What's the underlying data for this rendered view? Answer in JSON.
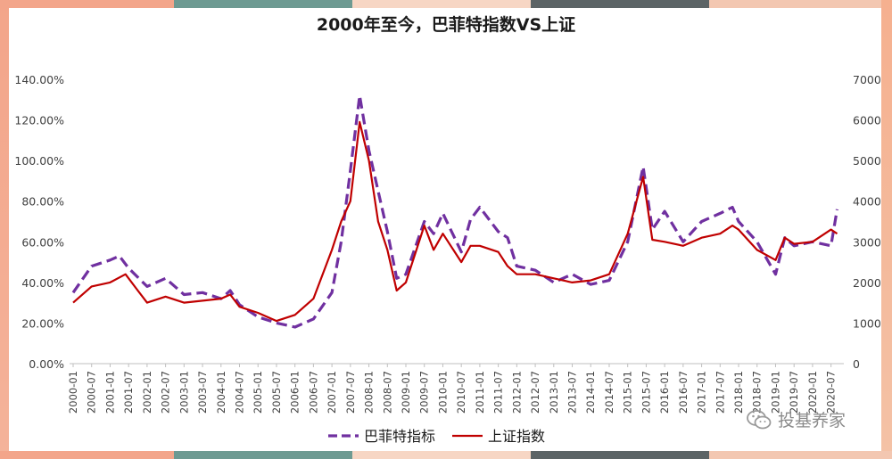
{
  "chart_data": {
    "type": "line",
    "title": "2000年至今，巴菲特指数VS上证",
    "x_tick_labels": [
      "2000-01",
      "2000-07",
      "2001-01",
      "2001-07",
      "2002-01",
      "2002-07",
      "2003-01",
      "2003-07",
      "2004-01",
      "2004-07",
      "2005-01",
      "2005-07",
      "2006-01",
      "2006-07",
      "2007-01",
      "2007-07",
      "2008-01",
      "2008-07",
      "2009-01",
      "2009-07",
      "2010-01",
      "2010-07",
      "2011-01",
      "2011-07",
      "2012-01",
      "2012-07",
      "2013-01",
      "2013-07",
      "2014-01",
      "2014-07",
      "2015-01",
      "2015-07",
      "2016-01",
      "2016-07",
      "2017-01",
      "2017-07",
      "2018-01",
      "2018-07",
      "2019-01",
      "2019-07",
      "2020-01",
      "2020-07"
    ],
    "y_left": {
      "ticks": [
        "0.00%",
        "20.00%",
        "40.00%",
        "60.00%",
        "80.00%",
        "100.00%",
        "120.00%",
        "140.00%"
      ],
      "range": [
        0,
        140
      ]
    },
    "y_right": {
      "ticks": [
        "0",
        "1000",
        "2000",
        "3000",
        "4000",
        "5000",
        "6000",
        "7000"
      ],
      "range": [
        0,
        7000
      ]
    },
    "grid": false,
    "legend_position": "bottom",
    "series": [
      {
        "name": "巴菲特指标",
        "axis": "left",
        "style": "dashed",
        "color": "#7030a0",
        "x": [
          "2000-01",
          "2000-07",
          "2001-01",
          "2001-04",
          "2001-07",
          "2002-01",
          "2002-07",
          "2003-01",
          "2003-07",
          "2004-01",
          "2004-04",
          "2004-07",
          "2005-01",
          "2005-07",
          "2006-01",
          "2006-07",
          "2007-01",
          "2007-04",
          "2007-07",
          "2007-10",
          "2008-01",
          "2008-04",
          "2008-07",
          "2008-10",
          "2009-01",
          "2009-07",
          "2009-10",
          "2010-01",
          "2010-07",
          "2010-10",
          "2011-01",
          "2011-07",
          "2011-10",
          "2012-01",
          "2012-07",
          "2013-01",
          "2013-07",
          "2014-01",
          "2014-07",
          "2015-01",
          "2015-06",
          "2015-09",
          "2016-01",
          "2016-07",
          "2017-01",
          "2017-07",
          "2017-11",
          "2018-01",
          "2018-07",
          "2019-01",
          "2019-04",
          "2019-07",
          "2020-01",
          "2020-07",
          "2020-09"
        ],
        "values": [
          35,
          48,
          51,
          53,
          47,
          38,
          42,
          34,
          35,
          32,
          36,
          29,
          23,
          20,
          18,
          22,
          35,
          60,
          95,
          132,
          105,
          85,
          65,
          42,
          44,
          70,
          64,
          74,
          55,
          71,
          77,
          65,
          62,
          48,
          46,
          40,
          44,
          39,
          41,
          60,
          97,
          66,
          75,
          60,
          70,
          74,
          77,
          70,
          60,
          44,
          62,
          58,
          60,
          58,
          76
        ]
      },
      {
        "name": "上证指数",
        "axis": "right",
        "style": "solid",
        "color": "#c00000",
        "x": [
          "2000-01",
          "2000-07",
          "2001-01",
          "2001-06",
          "2001-10",
          "2002-01",
          "2002-07",
          "2003-01",
          "2003-07",
          "2004-01",
          "2004-04",
          "2004-07",
          "2005-01",
          "2005-07",
          "2006-01",
          "2006-07",
          "2007-01",
          "2007-04",
          "2007-07",
          "2007-10",
          "2008-01",
          "2008-04",
          "2008-07",
          "2008-10",
          "2009-01",
          "2009-07",
          "2009-10",
          "2010-01",
          "2010-07",
          "2010-10",
          "2011-01",
          "2011-07",
          "2011-10",
          "2012-01",
          "2012-07",
          "2013-01",
          "2013-07",
          "2014-01",
          "2014-07",
          "2015-01",
          "2015-06",
          "2015-09",
          "2016-01",
          "2016-07",
          "2017-01",
          "2017-07",
          "2017-11",
          "2018-01",
          "2018-07",
          "2019-01",
          "2019-04",
          "2019-07",
          "2020-01",
          "2020-07",
          "2020-09"
        ],
        "values": [
          1500,
          1900,
          2000,
          2200,
          1800,
          1500,
          1650,
          1500,
          1550,
          1600,
          1700,
          1400,
          1250,
          1050,
          1200,
          1600,
          2800,
          3500,
          4000,
          5950,
          5000,
          3500,
          2800,
          1800,
          2000,
          3400,
          2800,
          3200,
          2500,
          2900,
          2900,
          2750,
          2400,
          2200,
          2200,
          2100,
          2000,
          2050,
          2200,
          3200,
          4600,
          3050,
          3000,
          2900,
          3100,
          3200,
          3400,
          3300,
          2800,
          2550,
          3100,
          2950,
          3000,
          3300,
          3200
        ]
      }
    ]
  },
  "watermark": {
    "text": "投基养家",
    "icon": "wechat-icon"
  },
  "colors": {
    "left_edge": "#f3a58a",
    "right_edge": "#f5b08f",
    "band_teal": "#6d9a92",
    "band_dark": "#5c6466",
    "band_peach": "#f3c7b1"
  }
}
